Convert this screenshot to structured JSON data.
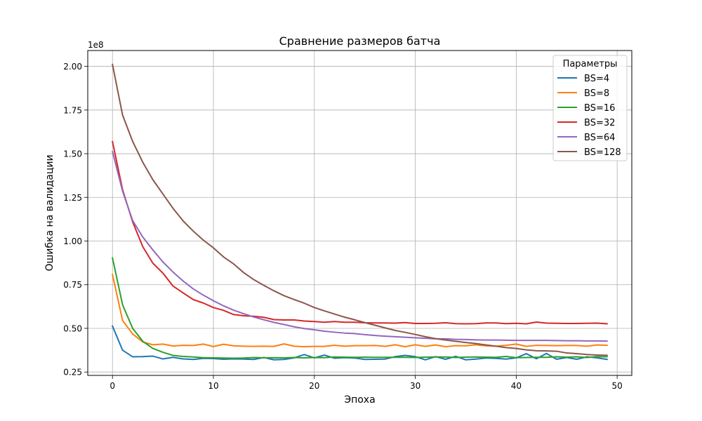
{
  "chart_data": {
    "type": "line",
    "title": "Сравнение размеров батча",
    "xlabel": "Эпоха",
    "ylabel": "Ошибка на валидации",
    "y_offset_label": "1e8",
    "xlim": [
      -2.45,
      51.45
    ],
    "ylim": [
      0.2307,
      2.0907
    ],
    "x_ticks": [
      0,
      10,
      20,
      30,
      40,
      50
    ],
    "x_tick_labels": [
      "0",
      "10",
      "20",
      "30",
      "40",
      "50"
    ],
    "y_ticks": [
      0.25,
      0.5,
      0.75,
      1.0,
      1.25,
      1.5,
      1.75,
      2.0
    ],
    "y_tick_labels": [
      "0.25",
      "0.50",
      "0.75",
      "1.00",
      "1.25",
      "1.50",
      "1.75",
      "2.00"
    ],
    "grid": true,
    "legend_title": "Параметры",
    "legend_position": "top-right",
    "x": [
      0,
      1,
      2,
      3,
      4,
      5,
      6,
      7,
      8,
      9,
      10,
      11,
      12,
      13,
      14,
      15,
      16,
      17,
      18,
      19,
      20,
      21,
      22,
      23,
      24,
      25,
      26,
      27,
      28,
      29,
      30,
      31,
      32,
      33,
      34,
      35,
      36,
      37,
      38,
      39,
      40,
      41,
      42,
      43,
      44,
      45,
      46,
      47,
      48,
      49
    ],
    "series": [
      {
        "name": "BS=4",
        "color": "#1f77b4",
        "values": [
          0.513,
          0.375,
          0.337,
          0.338,
          0.341,
          0.325,
          0.334,
          0.325,
          0.322,
          0.328,
          0.327,
          0.323,
          0.325,
          0.324,
          0.322,
          0.333,
          0.32,
          0.322,
          0.331,
          0.35,
          0.331,
          0.347,
          0.329,
          0.332,
          0.33,
          0.322,
          0.323,
          0.324,
          0.338,
          0.345,
          0.338,
          0.32,
          0.338,
          0.323,
          0.34,
          0.32,
          0.324,
          0.33,
          0.328,
          0.324,
          0.331,
          0.355,
          0.326,
          0.356,
          0.323,
          0.333,
          0.323,
          0.337,
          0.331,
          0.322
        ]
      },
      {
        "name": "BS=8",
        "color": "#ff7f0e",
        "values": [
          0.808,
          0.545,
          0.468,
          0.422,
          0.406,
          0.41,
          0.399,
          0.403,
          0.402,
          0.41,
          0.396,
          0.409,
          0.4,
          0.398,
          0.397,
          0.398,
          0.397,
          0.411,
          0.398,
          0.395,
          0.397,
          0.397,
          0.403,
          0.398,
          0.401,
          0.401,
          0.402,
          0.397,
          0.406,
          0.395,
          0.406,
          0.397,
          0.405,
          0.395,
          0.401,
          0.4,
          0.406,
          0.4,
          0.398,
          0.403,
          0.41,
          0.397,
          0.403,
          0.402,
          0.401,
          0.402,
          0.402,
          0.398,
          0.405,
          0.403
        ]
      },
      {
        "name": "BS=16",
        "color": "#2ca02c",
        "values": [
          0.903,
          0.635,
          0.5,
          0.426,
          0.385,
          0.363,
          0.345,
          0.339,
          0.336,
          0.332,
          0.331,
          0.33,
          0.329,
          0.33,
          0.333,
          0.331,
          0.332,
          0.331,
          0.333,
          0.331,
          0.333,
          0.332,
          0.336,
          0.335,
          0.334,
          0.335,
          0.334,
          0.334,
          0.334,
          0.334,
          0.333,
          0.335,
          0.336,
          0.336,
          0.333,
          0.335,
          0.336,
          0.335,
          0.334,
          0.339,
          0.332,
          0.333,
          0.334,
          0.334,
          0.337,
          0.335,
          0.337,
          0.333,
          0.338,
          0.337
        ]
      },
      {
        "name": "BS=32",
        "color": "#d62728",
        "values": [
          1.569,
          1.294,
          1.109,
          0.968,
          0.873,
          0.816,
          0.742,
          0.703,
          0.665,
          0.645,
          0.619,
          0.603,
          0.579,
          0.572,
          0.569,
          0.563,
          0.55,
          0.548,
          0.548,
          0.542,
          0.539,
          0.535,
          0.539,
          0.535,
          0.535,
          0.532,
          0.531,
          0.531,
          0.53,
          0.533,
          0.528,
          0.528,
          0.529,
          0.532,
          0.527,
          0.526,
          0.527,
          0.531,
          0.531,
          0.527,
          0.529,
          0.526,
          0.536,
          0.53,
          0.529,
          0.528,
          0.528,
          0.529,
          0.53,
          0.526
        ]
      },
      {
        "name": "BS=64",
        "color": "#9467bd",
        "values": [
          1.512,
          1.285,
          1.117,
          1.023,
          0.949,
          0.88,
          0.822,
          0.771,
          0.726,
          0.69,
          0.658,
          0.629,
          0.604,
          0.584,
          0.565,
          0.549,
          0.534,
          0.522,
          0.509,
          0.499,
          0.492,
          0.484,
          0.478,
          0.473,
          0.47,
          0.464,
          0.459,
          0.455,
          0.452,
          0.449,
          0.446,
          0.443,
          0.44,
          0.44,
          0.437,
          0.436,
          0.434,
          0.433,
          0.433,
          0.432,
          0.431,
          0.431,
          0.431,
          0.431,
          0.43,
          0.429,
          0.429,
          0.428,
          0.428,
          0.427
        ]
      },
      {
        "name": "BS=128",
        "color": "#8c564b",
        "values": [
          2.011,
          1.721,
          1.57,
          1.451,
          1.351,
          1.269,
          1.187,
          1.115,
          1.057,
          1.005,
          0.961,
          0.909,
          0.869,
          0.819,
          0.779,
          0.746,
          0.715,
          0.687,
          0.665,
          0.644,
          0.619,
          0.6,
          0.582,
          0.564,
          0.549,
          0.533,
          0.518,
          0.503,
          0.488,
          0.477,
          0.465,
          0.452,
          0.441,
          0.433,
          0.426,
          0.419,
          0.413,
          0.405,
          0.398,
          0.39,
          0.385,
          0.377,
          0.372,
          0.371,
          0.369,
          0.359,
          0.355,
          0.35,
          0.347,
          0.346
        ]
      }
    ]
  }
}
